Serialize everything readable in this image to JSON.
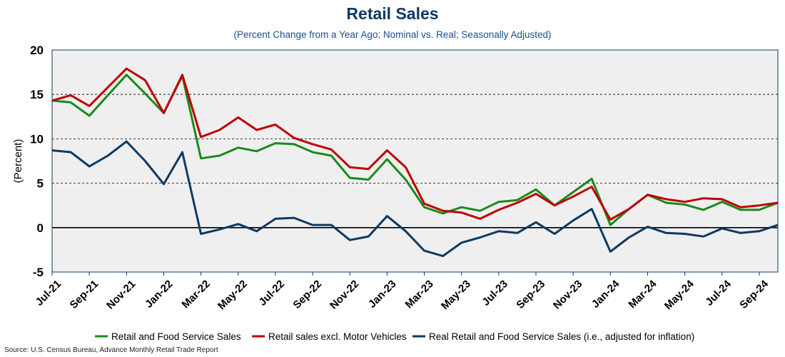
{
  "chart_data": {
    "type": "line",
    "title": "Retail Sales",
    "subtitle": "(Percent Change from a Year Ago; Nominal vs. Real; Seasonally Adjusted)",
    "xlabel": "",
    "ylabel": "(Percent)",
    "ylim": [
      -5,
      20
    ],
    "yticks": [
      -5,
      0,
      5,
      10,
      15,
      20
    ],
    "grid": "horizontal dashed",
    "legend_position": "bottom",
    "x": [
      "Jul-21",
      "Aug-21",
      "Sep-21",
      "Oct-21",
      "Nov-21",
      "Dec-21",
      "Jan-22",
      "Feb-22",
      "Mar-22",
      "Apr-22",
      "May-22",
      "Jun-22",
      "Jul-22",
      "Aug-22",
      "Sep-22",
      "Oct-22",
      "Nov-22",
      "Dec-22",
      "Jan-23",
      "Feb-23",
      "Mar-23",
      "Apr-23",
      "May-23",
      "Jun-23",
      "Jul-23",
      "Aug-23",
      "Sep-23",
      "Oct-23",
      "Nov-23",
      "Dec-23",
      "Jan-24",
      "Feb-24",
      "Mar-24",
      "Apr-24",
      "May-24",
      "Jun-24",
      "Jul-24",
      "Aug-24",
      "Sep-24",
      "Oct-24"
    ],
    "x_tick_labels": [
      "Jul-21",
      "Sep-21",
      "Nov-21",
      "Jan-22",
      "Mar-22",
      "May-22",
      "Jul-22",
      "Sep-22",
      "Nov-22",
      "Jan-23",
      "Mar-23",
      "May-23",
      "Jul-23",
      "Sep-23",
      "Nov-23",
      "Jan-24",
      "Mar-24",
      "May-24",
      "Jul-24",
      "Sep-24"
    ],
    "series": [
      {
        "name": "Retail and Food Service Sales",
        "color": "#1a8a1a",
        "values": [
          14.3,
          14.1,
          12.6,
          14.9,
          17.2,
          15.1,
          12.9,
          17.1,
          7.8,
          8.1,
          9.0,
          8.6,
          9.5,
          9.4,
          8.5,
          8.1,
          5.6,
          5.4,
          7.7,
          5.4,
          2.3,
          1.6,
          2.3,
          1.9,
          2.9,
          3.1,
          4.3,
          2.5,
          4.0,
          5.5,
          0.3,
          2.1,
          3.7,
          2.8,
          2.6,
          2.0,
          2.9,
          2.0,
          2.0,
          2.8
        ]
      },
      {
        "name": "Retail sales excl. Motor Vehicles",
        "color": "#c00000",
        "values": [
          14.3,
          14.9,
          13.7,
          15.8,
          17.9,
          16.6,
          12.9,
          17.2,
          10.2,
          11.0,
          12.4,
          11.0,
          11.6,
          10.1,
          9.4,
          8.8,
          6.8,
          6.6,
          8.7,
          6.8,
          2.7,
          1.9,
          1.7,
          1.0,
          2.0,
          2.8,
          3.8,
          2.5,
          3.5,
          4.6,
          0.9,
          2.1,
          3.7,
          3.2,
          2.9,
          3.3,
          3.2,
          2.3,
          2.5,
          2.8
        ]
      },
      {
        "name": "Real Retail and Food Service Sales (i.e., adjusted for inflation)",
        "color": "#0d3a63",
        "values": [
          8.7,
          8.5,
          6.9,
          8.1,
          9.7,
          7.5,
          4.9,
          8.5,
          -0.7,
          -0.2,
          0.4,
          -0.4,
          1.0,
          1.1,
          0.3,
          0.3,
          -1.4,
          -1.0,
          1.3,
          -0.4,
          -2.6,
          -3.2,
          -1.7,
          -1.1,
          -0.4,
          -0.6,
          0.6,
          -0.7,
          0.8,
          2.1,
          -2.7,
          -1.1,
          0.1,
          -0.6,
          -0.7,
          -1.0,
          -0.1,
          -0.6,
          -0.4,
          0.3
        ]
      }
    ]
  },
  "source": "Source: U.S. Census Bureau, Advance Monthly Retail Trade Report"
}
